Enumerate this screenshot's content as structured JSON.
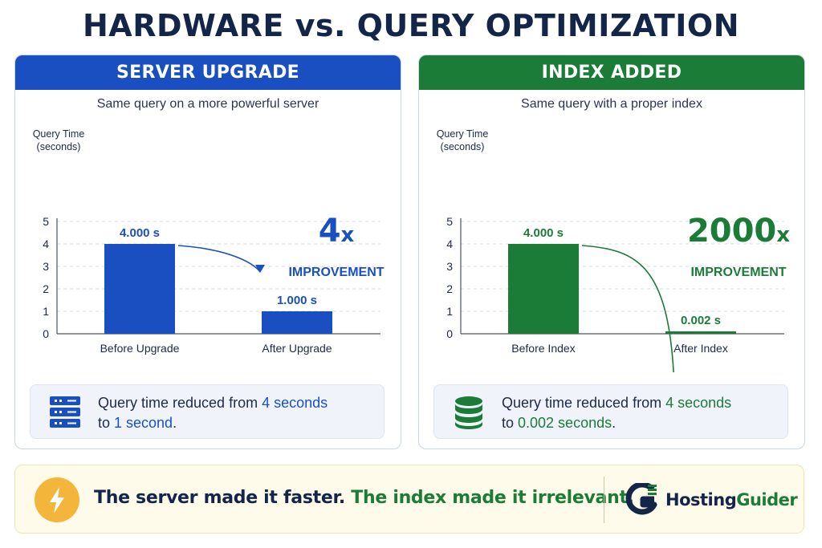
{
  "title": "HARDWARE vs. QUERY OPTIMIZATION",
  "colors": {
    "blue": "#1a4fc2",
    "green": "#1b7c37",
    "navy": "#14254a",
    "amber": "#f3b53a"
  },
  "panels": [
    {
      "heading": "SERVER UPGRADE",
      "subtitle": "Same query on a more powerful server",
      "multiplier": "4",
      "multiplier_suffix": "x",
      "improvement_label": "IMPROVEMENT",
      "info_icon": "server-icon",
      "info": {
        "prefix": "Query time reduced from ",
        "from": "4 seconds",
        "middle": "to ",
        "to": "1 second",
        "suffix": "."
      }
    },
    {
      "heading": "INDEX ADDED",
      "subtitle": "Same query with a proper index",
      "multiplier": "2000",
      "multiplier_suffix": "x",
      "improvement_label": "IMPROVEMENT",
      "info_icon": "database-icon",
      "info": {
        "prefix": "Query time reduced from ",
        "from": "4 seconds",
        "middle": "to ",
        "to": "0.002 seconds",
        "suffix": "."
      }
    }
  ],
  "chart_data": [
    {
      "type": "bar",
      "ylabel": "Query Time (seconds)",
      "ylim": [
        0,
        5
      ],
      "yticks": [
        0,
        1,
        2,
        3,
        4,
        5
      ],
      "grid": true,
      "categories": [
        "Before Upgrade",
        "After Upgrade"
      ],
      "values": [
        4.0,
        1.0
      ],
      "data_labels": [
        "4.000 s",
        "1.000 s"
      ],
      "color": "#1a4fc2"
    },
    {
      "type": "bar",
      "ylabel": "Query Time (seconds)",
      "ylim": [
        0,
        5
      ],
      "yticks": [
        0,
        1,
        2,
        3,
        4,
        5
      ],
      "grid": true,
      "categories": [
        "Before Index",
        "After Index"
      ],
      "values": [
        4.0,
        0.002
      ],
      "data_labels": [
        "4.000 s",
        "0.002 s"
      ],
      "color": "#1b7c37"
    }
  ],
  "footer": {
    "icon": "lightning-bolt-icon",
    "statement_part1": "The server made it faster.",
    "statement_part2": "The index made it irrelevant.",
    "brand_icon": "hostingguider-logo-icon",
    "brand_part1": "Hosting",
    "brand_part2": "Guider"
  }
}
